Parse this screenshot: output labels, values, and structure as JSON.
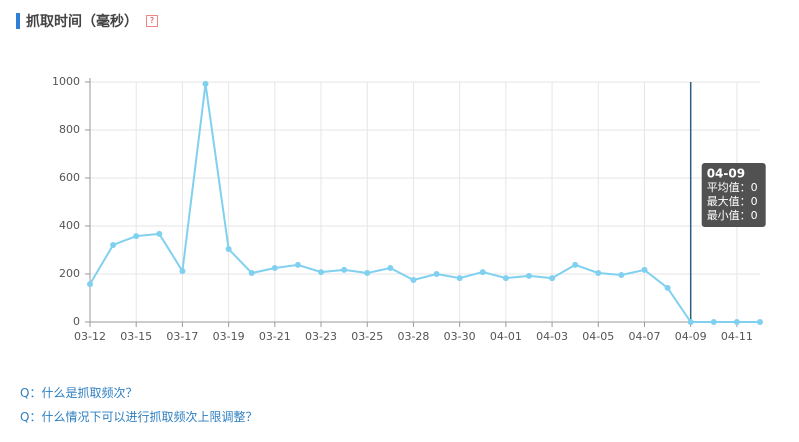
{
  "header": {
    "title": "抓取时间（毫秒）",
    "help": "?"
  },
  "chart_data": {
    "type": "line",
    "categories": [
      "03-12",
      null,
      "03-15",
      null,
      "03-17",
      null,
      "03-19",
      null,
      "03-21",
      null,
      "03-23",
      null,
      "03-25",
      null,
      "03-28",
      null,
      "03-30",
      null,
      "04-01",
      null,
      "04-03",
      null,
      "04-05",
      null,
      "04-07",
      null,
      "04-09",
      null,
      "04-11",
      null
    ],
    "series": [
      {
        "color": "#80d0ef",
        "values": [
          158,
          321,
          358,
          367,
          212,
          992,
          304,
          204,
          225,
          238,
          208,
          217,
          204,
          225,
          175,
          200,
          183,
          208,
          183,
          192,
          183,
          238,
          204,
          196,
          217,
          142,
          0,
          0,
          0,
          0
        ]
      }
    ],
    "ylim": [
      0,
      1000
    ],
    "yticks": [
      0,
      200,
      400,
      600,
      800,
      1000
    ],
    "grid": true,
    "tooltip": {
      "index": 26,
      "lines": [
        "平均值：0",
        "最大值：0",
        "最小值：0"
      ]
    }
  },
  "faq": [
    "Q：什么是抓取频次？",
    "Q：什么情况下可以进行抓取频次上限调整？"
  ]
}
